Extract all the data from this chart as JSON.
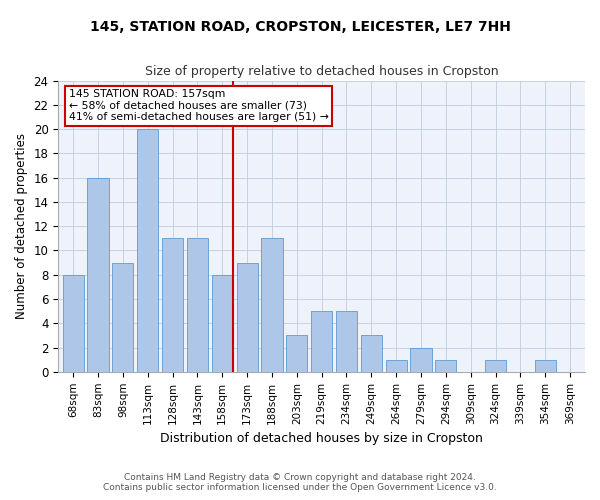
{
  "title_line1": "145, STATION ROAD, CROPSTON, LEICESTER, LE7 7HH",
  "title_line2": "Size of property relative to detached houses in Cropston",
  "xlabel": "Distribution of detached houses by size in Cropston",
  "ylabel": "Number of detached properties",
  "categories": [
    "68sqm",
    "83sqm",
    "98sqm",
    "113sqm",
    "128sqm",
    "143sqm",
    "158sqm",
    "173sqm",
    "188sqm",
    "203sqm",
    "219sqm",
    "234sqm",
    "249sqm",
    "264sqm",
    "279sqm",
    "294sqm",
    "309sqm",
    "324sqm",
    "339sqm",
    "354sqm",
    "369sqm"
  ],
  "values": [
    8,
    16,
    9,
    20,
    11,
    11,
    8,
    9,
    11,
    3,
    5,
    5,
    3,
    1,
    2,
    1,
    0,
    1,
    0,
    1,
    0
  ],
  "bar_color": "#aec6e8",
  "bar_edge_color": "#5b9bd5",
  "highlight_index": 6,
  "highlight_line_color": "#cc0000",
  "annotation_line1": "145 STATION ROAD: 157sqm",
  "annotation_line2": "← 58% of detached houses are smaller (73)",
  "annotation_line3": "41% of semi-detached houses are larger (51) →",
  "annotation_box_color": "#cc0000",
  "ylim": [
    0,
    24
  ],
  "yticks": [
    0,
    2,
    4,
    6,
    8,
    10,
    12,
    14,
    16,
    18,
    20,
    22,
    24
  ],
  "background_color": "#eef2fb",
  "footer_line1": "Contains HM Land Registry data © Crown copyright and database right 2024.",
  "footer_line2": "Contains public sector information licensed under the Open Government Licence v3.0."
}
